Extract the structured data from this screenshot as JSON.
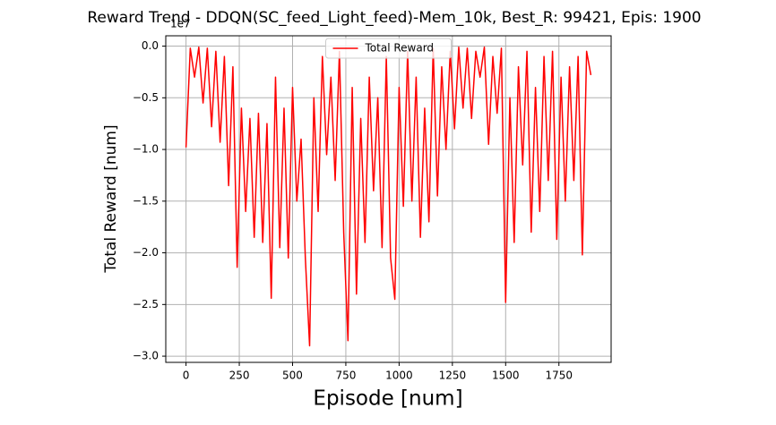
{
  "chart_data": {
    "type": "line",
    "title": "Reward Trend - DDQN(SC_feed_Light_feed)-Mem_10k, Best_R: 99421, Epis: 1900",
    "x_label": "Episode [num]",
    "y_label": "Total Reward [num]",
    "y_offset_label": "1e7",
    "x": [
      0,
      20,
      40,
      60,
      80,
      100,
      120,
      140,
      160,
      180,
      200,
      220,
      240,
      260,
      280,
      300,
      320,
      340,
      360,
      380,
      400,
      420,
      440,
      460,
      480,
      500,
      520,
      540,
      560,
      580,
      600,
      620,
      640,
      660,
      680,
      700,
      720,
      740,
      760,
      780,
      800,
      820,
      840,
      860,
      880,
      900,
      920,
      940,
      960,
      980,
      1000,
      1020,
      1040,
      1060,
      1080,
      1100,
      1120,
      1140,
      1160,
      1180,
      1200,
      1220,
      1240,
      1260,
      1280,
      1300,
      1320,
      1340,
      1360,
      1380,
      1400,
      1420,
      1440,
      1460,
      1480,
      1500,
      1520,
      1540,
      1560,
      1580,
      1600,
      1620,
      1640,
      1660,
      1680,
      1700,
      1720,
      1740,
      1760,
      1780,
      1800,
      1820,
      1840,
      1860,
      1880,
      1900
    ],
    "series": [
      {
        "name": "Total Reward",
        "color": "#ff0000",
        "values": [
          -0.98,
          -0.02,
          -0.3,
          -0.01,
          -0.55,
          -0.02,
          -0.78,
          -0.05,
          -0.93,
          -0.1,
          -1.35,
          -0.2,
          -2.14,
          -0.6,
          -1.6,
          -0.7,
          -1.85,
          -0.65,
          -1.9,
          -0.75,
          -2.44,
          -0.3,
          -1.95,
          -0.6,
          -2.05,
          -0.4,
          -1.5,
          -0.9,
          -2.05,
          -2.9,
          -0.5,
          -1.6,
          -0.1,
          -1.05,
          -0.3,
          -1.3,
          -0.05,
          -1.8,
          -2.85,
          -0.4,
          -2.4,
          -0.7,
          -1.9,
          -0.3,
          -1.4,
          -0.5,
          -1.95,
          -0.1,
          -2.05,
          -2.45,
          -0.4,
          -1.55,
          -0.05,
          -1.5,
          -0.3,
          -1.85,
          -0.6,
          -1.7,
          -0.02,
          -1.45,
          -0.2,
          -1.0,
          -0.05,
          -0.8,
          -0.01,
          -0.6,
          -0.02,
          -0.7,
          -0.05,
          -0.3,
          -0.01,
          -0.95,
          -0.1,
          -0.65,
          -0.02,
          -2.48,
          -0.5,
          -1.9,
          -0.2,
          -1.15,
          -0.05,
          -1.8,
          -0.4,
          -1.6,
          -0.1,
          -1.3,
          -0.05,
          -1.87,
          -0.3,
          -1.5,
          -0.2,
          -1.3,
          -0.1,
          -2.02,
          -0.05,
          -0.28
        ]
      }
    ],
    "xlim": [
      -95,
      1995
    ],
    "xticks": [
      0,
      250,
      500,
      750,
      1000,
      1250,
      1500,
      1750
    ],
    "ylim": [
      -3.06,
      0.1
    ],
    "yticks": [
      {
        "value": 0,
        "label": "0.0"
      },
      {
        "value": -0.5,
        "label": "−0.5"
      },
      {
        "value": -1,
        "label": "−1.0"
      },
      {
        "value": -1.5,
        "label": "−1.5"
      },
      {
        "value": -2,
        "label": "−2.0"
      },
      {
        "value": -2.5,
        "label": "−2.5"
      },
      {
        "value": -3,
        "label": "−3.0"
      }
    ],
    "grid": true,
    "legend": "upper center"
  }
}
